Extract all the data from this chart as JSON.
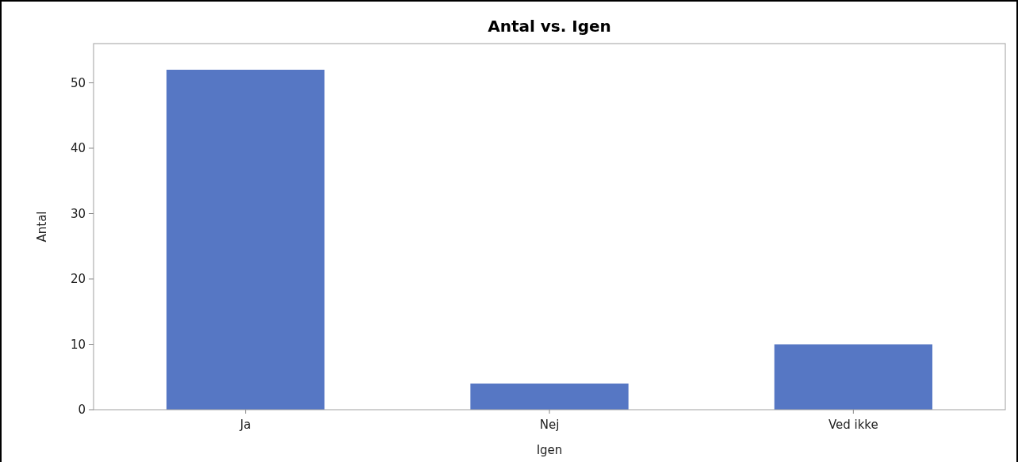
{
  "chart_data": {
    "type": "bar",
    "title": "Antal vs. Igen",
    "xlabel": "Igen",
    "ylabel": "Antal",
    "categories": [
      "Ja",
      "Nej",
      "Ved ikke"
    ],
    "values": [
      52,
      4,
      10
    ],
    "color": "#5677c4",
    "ylim": [
      0,
      56
    ],
    "yticks": [
      0,
      10,
      20,
      30,
      40,
      50
    ],
    "grid": false
  }
}
